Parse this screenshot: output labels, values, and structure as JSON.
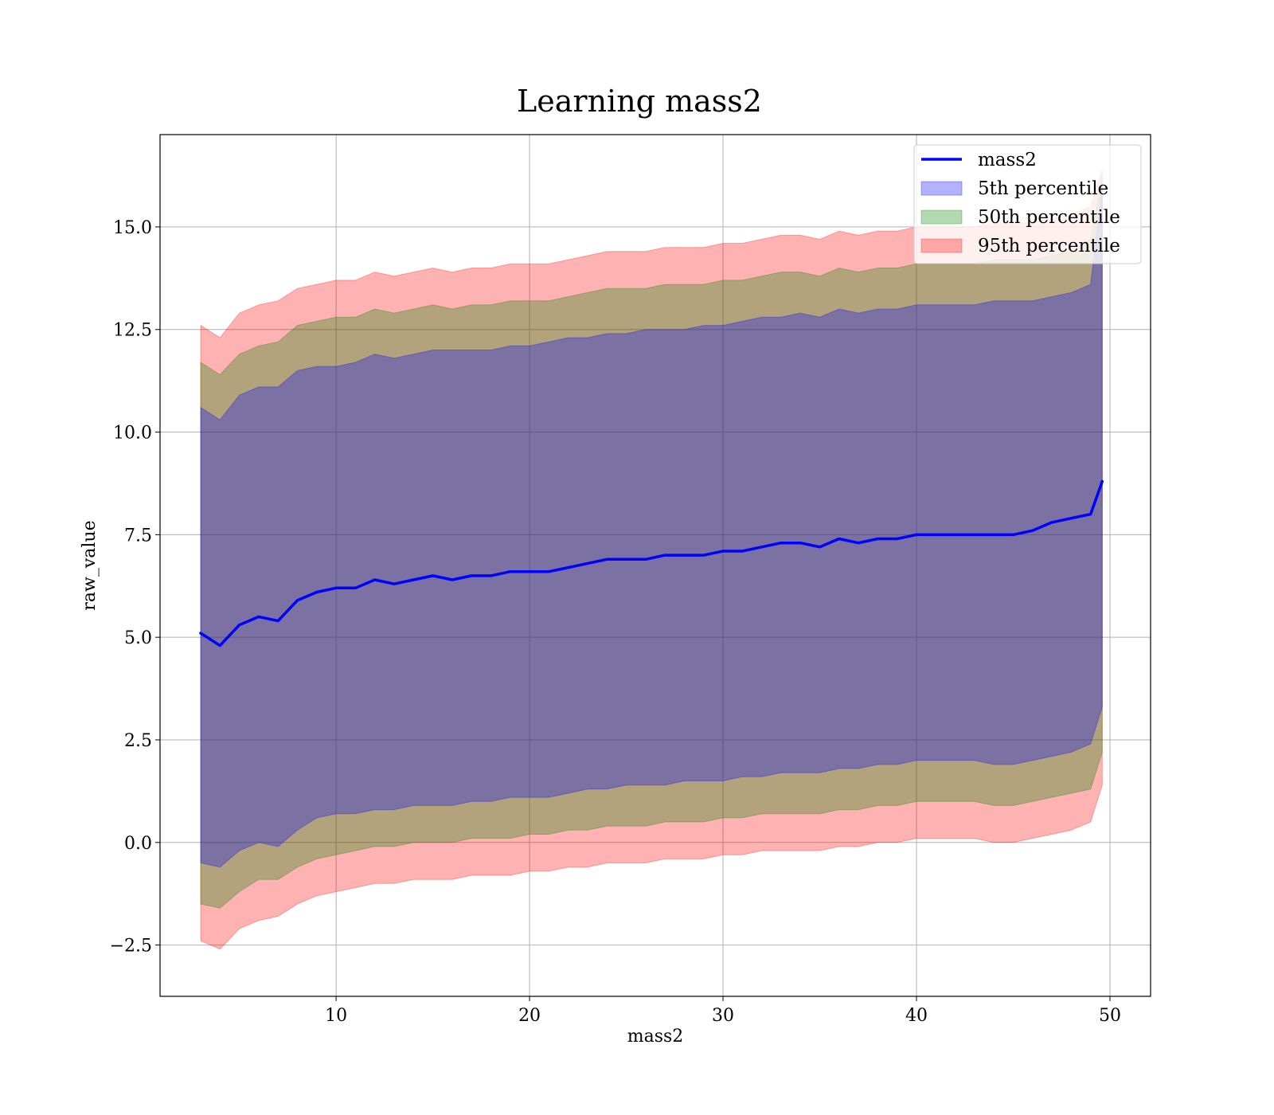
{
  "chart_data": {
    "type": "area",
    "title": "Learning mass2",
    "xlabel": "mass2",
    "ylabel": "raw_value",
    "xlim": [
      0.9,
      52.1
    ],
    "ylim": [
      -3.75,
      17.25
    ],
    "xticks": [
      10,
      20,
      30,
      40,
      50
    ],
    "xtick_labels": [
      "10",
      "20",
      "30",
      "40",
      "50"
    ],
    "yticks": [
      -2.5,
      0.0,
      2.5,
      5.0,
      7.5,
      10.0,
      12.5,
      15.0
    ],
    "ytick_labels": [
      "−2.5",
      "0.0",
      "2.5",
      "5.0",
      "7.5",
      "10.0",
      "12.5",
      "15.0"
    ],
    "grid": true,
    "legend_position": "top-right",
    "colors": {
      "line": "#0000ff",
      "p5": "#0000ff",
      "p50": "#008000",
      "p95": "#ff0000"
    },
    "x": [
      3,
      4,
      5,
      6,
      7,
      8,
      9,
      10,
      11,
      12,
      13,
      14,
      15,
      16,
      17,
      18,
      19,
      20,
      21,
      22,
      23,
      24,
      25,
      26,
      27,
      28,
      29,
      30,
      31,
      32,
      33,
      34,
      35,
      36,
      37,
      38,
      39,
      40,
      41,
      42,
      43,
      44,
      45,
      46,
      47,
      48,
      49,
      49.6
    ],
    "series": [
      {
        "name": "mass2",
        "kind": "line",
        "values": [
          5.1,
          4.8,
          5.3,
          5.5,
          5.4,
          5.9,
          6.1,
          6.2,
          6.2,
          6.4,
          6.3,
          6.4,
          6.5,
          6.4,
          6.5,
          6.5,
          6.6,
          6.6,
          6.6,
          6.7,
          6.8,
          6.9,
          6.9,
          6.9,
          7.0,
          7.0,
          7.0,
          7.1,
          7.1,
          7.2,
          7.3,
          7.3,
          7.2,
          7.4,
          7.3,
          7.4,
          7.4,
          7.5,
          7.5,
          7.5,
          7.5,
          7.5,
          7.5,
          7.6,
          7.8,
          7.9,
          8.0,
          8.8
        ]
      },
      {
        "name": "5th percentile",
        "kind": "band",
        "upper": [
          10.6,
          10.3,
          10.9,
          11.1,
          11.1,
          11.5,
          11.6,
          11.6,
          11.7,
          11.9,
          11.8,
          11.9,
          12.0,
          12.0,
          12.0,
          12.0,
          12.1,
          12.1,
          12.2,
          12.3,
          12.3,
          12.4,
          12.4,
          12.5,
          12.5,
          12.5,
          12.6,
          12.6,
          12.7,
          12.8,
          12.8,
          12.9,
          12.8,
          13.0,
          12.9,
          13.0,
          13.0,
          13.1,
          13.1,
          13.1,
          13.1,
          13.2,
          13.2,
          13.2,
          13.3,
          13.4,
          13.6,
          16.0
        ],
        "lower": [
          -0.5,
          -0.6,
          -0.2,
          0.0,
          -0.1,
          0.3,
          0.6,
          0.7,
          0.7,
          0.8,
          0.8,
          0.9,
          0.9,
          0.9,
          1.0,
          1.0,
          1.1,
          1.1,
          1.1,
          1.2,
          1.3,
          1.3,
          1.4,
          1.4,
          1.4,
          1.5,
          1.5,
          1.5,
          1.6,
          1.6,
          1.7,
          1.7,
          1.7,
          1.8,
          1.8,
          1.9,
          1.9,
          2.0,
          2.0,
          2.0,
          2.0,
          1.9,
          1.9,
          2.0,
          2.1,
          2.2,
          2.4,
          3.3
        ]
      },
      {
        "name": "50th percentile",
        "kind": "band",
        "upper": [
          11.7,
          11.4,
          11.9,
          12.1,
          12.2,
          12.6,
          12.7,
          12.8,
          12.8,
          13.0,
          12.9,
          13.0,
          13.1,
          13.0,
          13.1,
          13.1,
          13.2,
          13.2,
          13.2,
          13.3,
          13.4,
          13.5,
          13.5,
          13.5,
          13.6,
          13.6,
          13.6,
          13.7,
          13.7,
          13.8,
          13.9,
          13.9,
          13.8,
          14.0,
          13.9,
          14.0,
          14.0,
          14.1,
          14.1,
          14.1,
          14.1,
          14.2,
          14.2,
          14.2,
          14.3,
          14.4,
          14.7,
          16.2
        ],
        "lower": [
          -1.5,
          -1.6,
          -1.2,
          -0.9,
          -0.9,
          -0.6,
          -0.4,
          -0.3,
          -0.2,
          -0.1,
          -0.1,
          0.0,
          0.0,
          0.0,
          0.1,
          0.1,
          0.1,
          0.2,
          0.2,
          0.3,
          0.3,
          0.4,
          0.4,
          0.4,
          0.5,
          0.5,
          0.5,
          0.6,
          0.6,
          0.7,
          0.7,
          0.7,
          0.7,
          0.8,
          0.8,
          0.9,
          0.9,
          1.0,
          1.0,
          1.0,
          1.0,
          0.9,
          0.9,
          1.0,
          1.1,
          1.2,
          1.3,
          2.2
        ]
      },
      {
        "name": "95th percentile",
        "kind": "band",
        "upper": [
          12.6,
          12.3,
          12.9,
          13.1,
          13.2,
          13.5,
          13.6,
          13.7,
          13.7,
          13.9,
          13.8,
          13.9,
          14.0,
          13.9,
          14.0,
          14.0,
          14.1,
          14.1,
          14.1,
          14.2,
          14.3,
          14.4,
          14.4,
          14.4,
          14.5,
          14.5,
          14.5,
          14.6,
          14.6,
          14.7,
          14.8,
          14.8,
          14.7,
          14.9,
          14.8,
          14.9,
          14.9,
          15.0,
          15.0,
          15.0,
          15.0,
          15.1,
          15.1,
          15.1,
          15.2,
          15.3,
          15.5,
          16.4
        ],
        "lower": [
          -2.4,
          -2.6,
          -2.1,
          -1.9,
          -1.8,
          -1.5,
          -1.3,
          -1.2,
          -1.1,
          -1.0,
          -1.0,
          -0.9,
          -0.9,
          -0.9,
          -0.8,
          -0.8,
          -0.8,
          -0.7,
          -0.7,
          -0.6,
          -0.6,
          -0.5,
          -0.5,
          -0.5,
          -0.4,
          -0.4,
          -0.4,
          -0.3,
          -0.3,
          -0.2,
          -0.2,
          -0.2,
          -0.2,
          -0.1,
          -0.1,
          0.0,
          0.0,
          0.1,
          0.1,
          0.1,
          0.1,
          0.0,
          0.0,
          0.1,
          0.2,
          0.3,
          0.5,
          1.4
        ]
      }
    ]
  }
}
